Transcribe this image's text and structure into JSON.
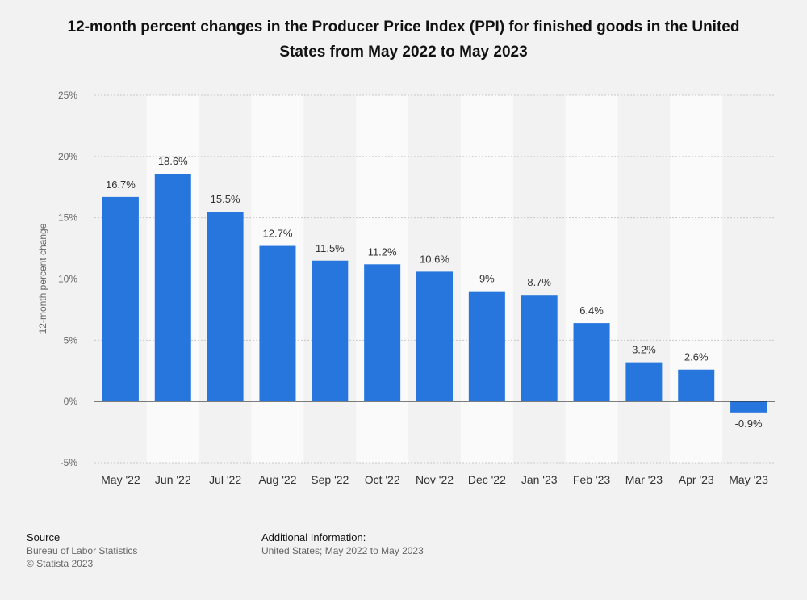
{
  "chart_data": {
    "type": "bar",
    "title": "12-month percent changes in the Producer Price Index (PPI) for finished goods in the United States from May 2022 to May 2023",
    "ylabel": "12-month percent change",
    "xlabel": "",
    "ylim": [
      -5,
      25
    ],
    "yticks": [
      25,
      20,
      15,
      10,
      5,
      0,
      -5
    ],
    "ytick_suffix": "%",
    "grid": true,
    "categories": [
      "May '22",
      "Jun '22",
      "Jul '22",
      "Aug '22",
      "Sep '22",
      "Oct '22",
      "Nov '22",
      "Dec '22",
      "Jan '23",
      "Feb '23",
      "Mar '23",
      "Apr '23",
      "May '23"
    ],
    "values": [
      16.7,
      18.6,
      15.5,
      12.7,
      11.5,
      11.2,
      10.6,
      9,
      8.7,
      6.4,
      3.2,
      2.6,
      -0.9
    ],
    "value_labels": [
      "16.7%",
      "18.6%",
      "15.5%",
      "12.7%",
      "11.5%",
      "11.2%",
      "10.6%",
      "9%",
      "8.7%",
      "6.4%",
      "3.2%",
      "2.6%",
      "-0.9%"
    ],
    "bar_color": "#2776de"
  },
  "footer": {
    "source_heading": "Source",
    "source_lines": [
      "Bureau of Labor Statistics",
      "© Statista 2023"
    ],
    "info_heading": "Additional Information:",
    "info_line": "United States; May 2022 to May 2023"
  }
}
